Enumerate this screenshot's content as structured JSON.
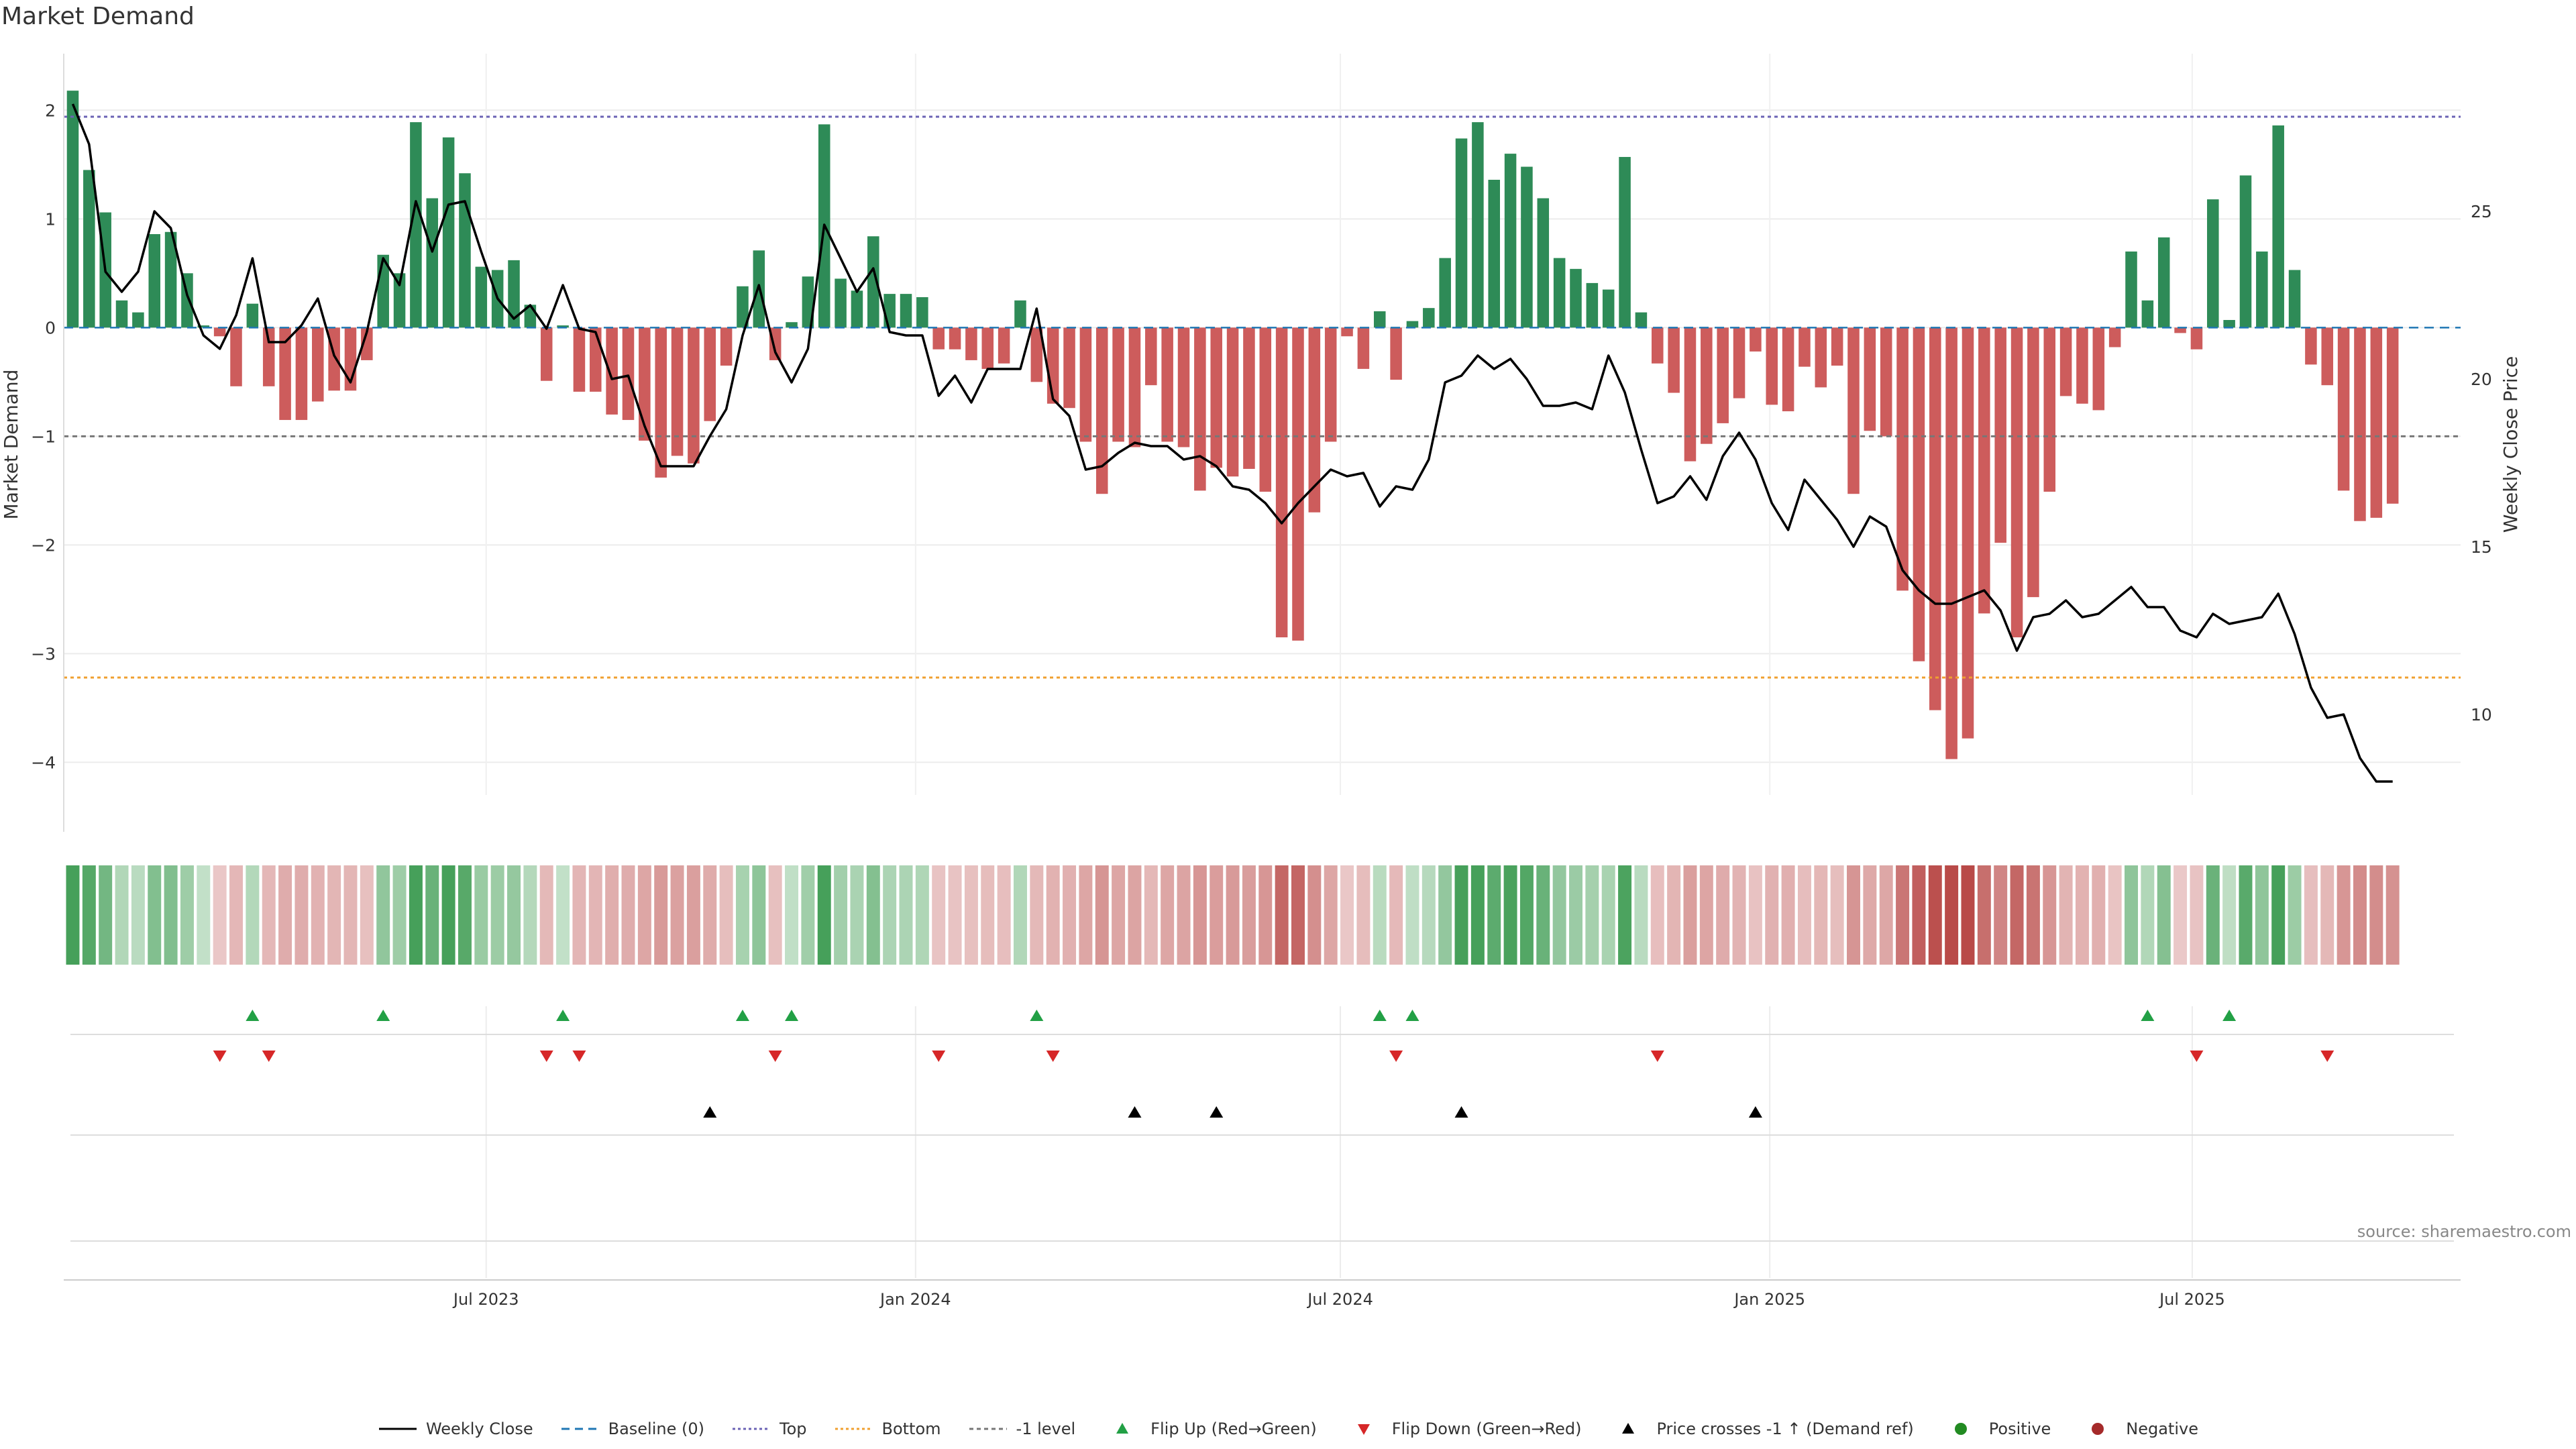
{
  "title": "Market Demand",
  "source": "source: sharemaestro.com",
  "colors": {
    "positive": "#2e8b57",
    "negative": "#cd5c5c",
    "line": "#000000",
    "top": "#6b63b5",
    "bottom": "#f0a030",
    "minus1": "#777777",
    "baseline": "#1f77b4"
  },
  "chart_data": {
    "type": "bar",
    "title": "Market Demand",
    "ylabel": "Market Demand",
    "y2label": "Weekly Close Price",
    "ylim": [
      -4.3,
      2.15
    ],
    "y2lim": [
      7.6,
      28.5
    ],
    "yticks": [
      2,
      1,
      0,
      -1,
      -2,
      -3,
      -4
    ],
    "y2ticks": [
      25,
      20,
      15,
      10
    ],
    "x_start": "2023-01-01",
    "x_end": "2025-10-24",
    "xticks": [
      {
        "date": "2023-07-01",
        "label": "Jul 2023"
      },
      {
        "date": "2024-01-01",
        "label": "Jan 2024"
      },
      {
        "date": "2024-07-01",
        "label": "Jul 2024"
      },
      {
        "date": "2025-01-01",
        "label": "Jan 2025"
      },
      {
        "date": "2025-07-01",
        "label": "Jul 2025"
      }
    ],
    "reference_lines": {
      "top": 1.94,
      "bottom": -3.22,
      "minus1": -1,
      "baseline": 0
    },
    "weeks_start": "2023-01-02",
    "demand": [
      2.18,
      1.45,
      1.06,
      0.25,
      0.14,
      0.86,
      0.88,
      0.5,
      0.02,
      -0.08,
      -0.54,
      0.22,
      -0.54,
      -0.85,
      -0.85,
      -0.68,
      -0.58,
      -0.58,
      -0.3,
      0.67,
      0.5,
      1.89,
      1.19,
      1.75,
      1.42,
      0.56,
      0.53,
      0.62,
      0.21,
      -0.49,
      0.02,
      -0.59,
      -0.59,
      -0.8,
      -0.85,
      -1.04,
      -1.38,
      -1.18,
      -1.25,
      -0.86,
      -0.35,
      0.38,
      0.71,
      -0.3,
      0.05,
      0.47,
      1.87,
      0.45,
      0.34,
      0.84,
      0.31,
      0.31,
      0.28,
      -0.2,
      -0.2,
      -0.3,
      -0.38,
      -0.33,
      0.25,
      -0.5,
      -0.7,
      -0.74,
      -1.05,
      -1.53,
      -1.05,
      -1.1,
      -0.53,
      -1.05,
      -1.1,
      -1.5,
      -1.29,
      -1.37,
      -1.3,
      -1.51,
      -2.85,
      -2.88,
      -1.7,
      -1.05,
      -0.08,
      -0.38,
      0.15,
      -0.48,
      0.06,
      0.18,
      0.64,
      1.74,
      1.89,
      1.36,
      1.6,
      1.48,
      1.19,
      0.64,
      0.54,
      0.41,
      0.35,
      1.57,
      0.14,
      -0.33,
      -0.6,
      -1.23,
      -1.07,
      -0.88,
      -0.65,
      -0.22,
      -0.71,
      -0.77,
      -0.36,
      -0.55,
      -0.35,
      -1.53,
      -0.95,
      -1.0,
      -2.42,
      -3.07,
      -3.52,
      -3.97,
      -3.78,
      -2.63,
      -1.98,
      -2.85,
      -2.48,
      -1.51,
      -0.63,
      -0.7,
      -0.76,
      -0.18,
      0.7,
      0.25,
      0.83,
      -0.05,
      -0.2,
      1.18,
      0.07,
      1.4,
      0.7,
      1.86,
      0.53,
      -0.34,
      -0.53,
      -1.5,
      -1.78,
      -1.75,
      -1.62
    ],
    "close": [
      28.2,
      27,
      23.2,
      22.6,
      23.2,
      25,
      24.5,
      22.5,
      21.3,
      20.9,
      21.9,
      23.6,
      21.1,
      21.1,
      21.6,
      22.4,
      20.7,
      19.9,
      21.4,
      23.6,
      22.8,
      25.3,
      23.8,
      25.2,
      25.3,
      23.8,
      22.4,
      21.8,
      22.2,
      21.5,
      22.8,
      21.5,
      21.4,
      20.0,
      20.1,
      18.6,
      17.4,
      17.4,
      17.4,
      18.3,
      19.1,
      21.3,
      22.8,
      20.8,
      19.9,
      20.9,
      24.6,
      23.6,
      22.6,
      23.3,
      21.4,
      21.3,
      21.3,
      19.5,
      20.1,
      19.3,
      20.3,
      20.3,
      20.3,
      22.1,
      19.4,
      18.9,
      17.3,
      17.4,
      17.8,
      18.1,
      18.0,
      18.0,
      17.6,
      17.7,
      17.4,
      16.8,
      16.7,
      16.3,
      15.7,
      16.3,
      16.8,
      17.3,
      17.1,
      17.2,
      16.2,
      16.8,
      16.7,
      17.6,
      19.9,
      20.1,
      20.7,
      20.3,
      20.6,
      20.0,
      19.2,
      19.2,
      19.3,
      19.1,
      20.7,
      19.6,
      17.9,
      16.3,
      16.5,
      17.1,
      16.4,
      17.7,
      18.4,
      17.6,
      16.3,
      15.5,
      17.0,
      16.4,
      15.8,
      15.0,
      15.9,
      15.6,
      14.3,
      13.7,
      13.3,
      13.3,
      13.5,
      13.7,
      13.1,
      11.9,
      12.9,
      13.0,
      13.4,
      12.9,
      13.0,
      13.4,
      13.8,
      13.2,
      13.2,
      12.5,
      12.3,
      13.0,
      12.7,
      12.8,
      12.9,
      13.6,
      12.4,
      10.8,
      9.9,
      10.0,
      8.7,
      8.0,
      8.0
    ],
    "flip_up_weeks": [
      11,
      19,
      30,
      41,
      44,
      59,
      80,
      82,
      127,
      132
    ],
    "flip_down_weeks": [
      9,
      12,
      29,
      31,
      43,
      53,
      60,
      81,
      97,
      130,
      138
    ],
    "price_cross_weeks": [
      39,
      65,
      70,
      85,
      103
    ],
    "legend": [
      "Weekly Close",
      "Baseline (0)",
      "Top",
      "Bottom",
      "-1 level",
      "Flip Up (Red→Green)",
      "Flip Down (Green→Red)",
      "Price crosses -1 ↑ (Demand ref)",
      "Positive",
      "Negative"
    ]
  }
}
